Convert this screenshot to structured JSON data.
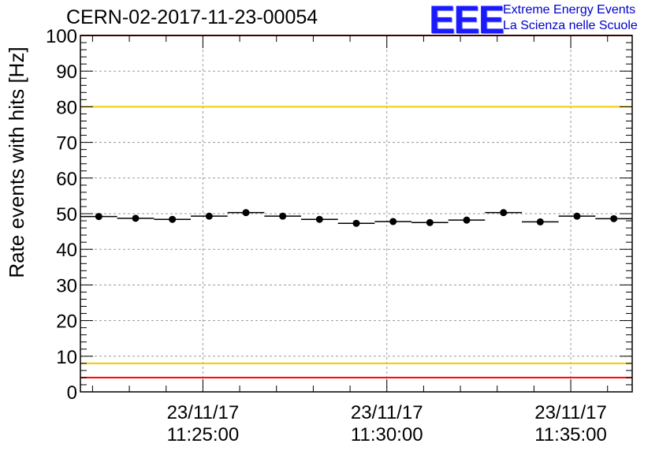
{
  "header": {
    "title": "CERN-02-2017-11-23-00054",
    "logo": {
      "mark": "EEE",
      "line1": "Extreme Energy Events",
      "line2": "La Scienza nelle Scuole"
    }
  },
  "chart_data": {
    "type": "scatter",
    "title": "CERN-02-2017-11-23-00054",
    "xlabel": "",
    "ylabel": "Rate events with hits [Hz]",
    "ylim": [
      0,
      100
    ],
    "xlim_minutes": [
      0,
      15
    ],
    "grid": true,
    "yticks": [
      0,
      10,
      20,
      30,
      40,
      50,
      60,
      70,
      80,
      90,
      100
    ],
    "xticks": [
      {
        "t": 3.33,
        "date": "23/11/17",
        "time": "11:25:00"
      },
      {
        "t": 8.33,
        "date": "23/11/17",
        "time": "11:30:00"
      },
      {
        "t": 13.33,
        "date": "23/11/17",
        "time": "11:35:00"
      }
    ],
    "bin_width_minutes": 1,
    "points": [
      {
        "x": 0.5,
        "y": 49.2
      },
      {
        "x": 1.5,
        "y": 48.7
      },
      {
        "x": 2.5,
        "y": 48.4
      },
      {
        "x": 3.5,
        "y": 49.3
      },
      {
        "x": 4.5,
        "y": 50.3
      },
      {
        "x": 5.5,
        "y": 49.3
      },
      {
        "x": 6.5,
        "y": 48.4
      },
      {
        "x": 7.5,
        "y": 47.3
      },
      {
        "x": 8.5,
        "y": 47.8
      },
      {
        "x": 9.5,
        "y": 47.5
      },
      {
        "x": 10.5,
        "y": 48.2
      },
      {
        "x": 11.5,
        "y": 50.3
      },
      {
        "x": 12.5,
        "y": 47.7
      },
      {
        "x": 13.5,
        "y": 49.3
      },
      {
        "x": 14.5,
        "y": 48.6
      }
    ],
    "reference_lines": [
      {
        "name": "upper-red-limit",
        "y": 100,
        "color": "#ff0000"
      },
      {
        "name": "upper-yellow-limit",
        "y": 80,
        "color": "#f2cc00"
      },
      {
        "name": "lower-yellow-limit",
        "y": 8,
        "color": "#f2cc00"
      },
      {
        "name": "lower-red-limit",
        "y": 4,
        "color": "#ff0000"
      }
    ],
    "colors": {
      "marker": "#000000",
      "grid": "#9a9a9a",
      "frame": "#000000"
    }
  }
}
